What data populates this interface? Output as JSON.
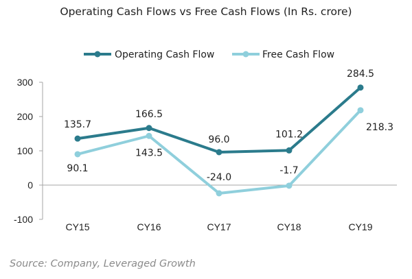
{
  "title": "Operating Cash Flows vs Free Cash Flows (In Rs. crore)",
  "source": "Source: Company, Leveraged Growth",
  "chart_data": {
    "type": "line",
    "title": "Operating Cash Flows vs Free Cash Flows (In Rs. crore)",
    "categories": [
      "CY15",
      "CY16",
      "CY17",
      "CY18",
      "CY19"
    ],
    "ylim": [
      -100,
      300
    ],
    "yticks": [
      -100,
      0,
      100,
      200,
      300
    ],
    "ytick_labels": [
      "-100",
      "0",
      "100",
      "200",
      "300"
    ],
    "grid": false,
    "legend_placement": "top-center",
    "series": [
      {
        "name": "Operating Cash Flow",
        "color": "#2b7b8c",
        "values": [
          135.7,
          166.5,
          96.0,
          101.2,
          284.5
        ],
        "labels": [
          "135.7",
          "166.5",
          "96.0",
          "101.2",
          "284.5"
        ]
      },
      {
        "name": "Free Cash Flow",
        "color": "#8fcfdc",
        "values": [
          90.1,
          143.5,
          -24.0,
          -1.7,
          218.3
        ],
        "labels": [
          "90.1",
          "143.5",
          "-24.0",
          "-1.7",
          "218.3"
        ]
      }
    ]
  }
}
